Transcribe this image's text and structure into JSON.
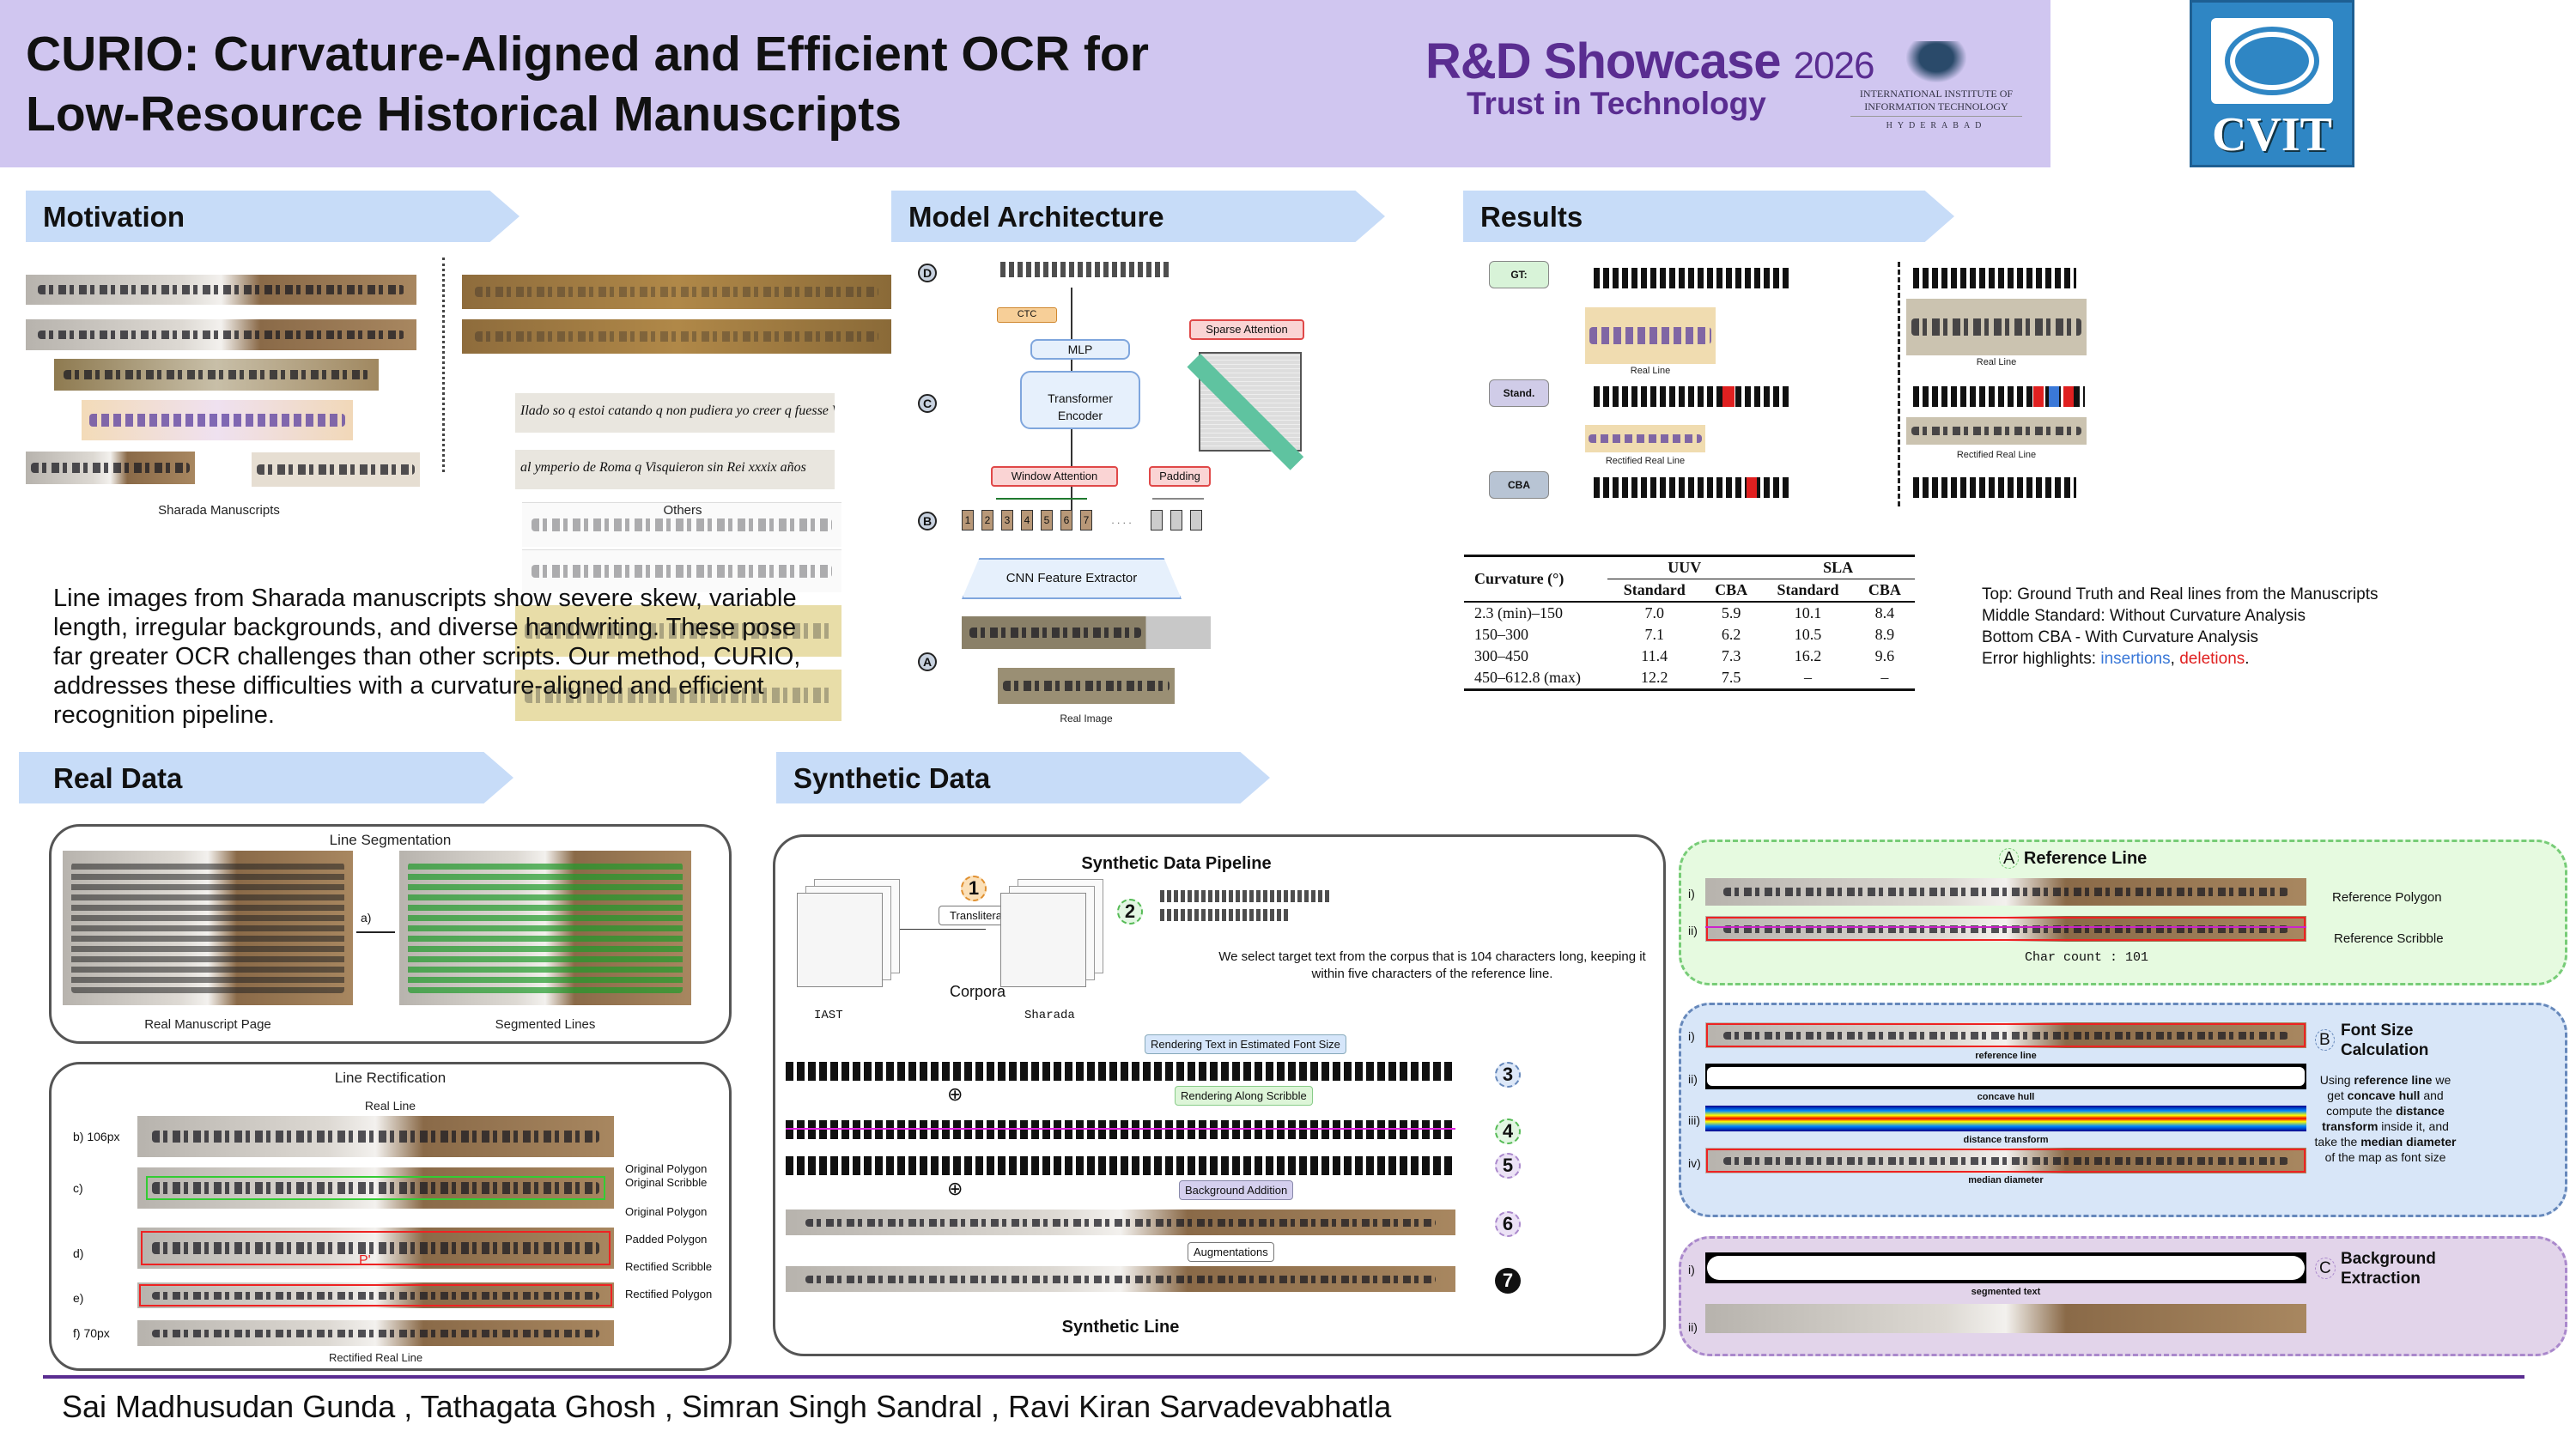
{
  "header": {
    "title_line1": "CURIO: Curvature-Aligned and Efficient OCR for",
    "title_line2": "Low-Resource Historical Manuscripts",
    "showcase": "R&D Showcase",
    "showcase_year": "2026",
    "tagline": "Trust in Technology",
    "institute_line1": "INTERNATIONAL INSTITUTE OF",
    "institute_line2": "INFORMATION TECHNOLOGY",
    "institute_city": "HYDERABAD",
    "lab_logo": "CVIT"
  },
  "sections": {
    "motivation": "Motivation",
    "architecture": "Model Architecture",
    "results": "Results",
    "real_data": "Real Data",
    "synthetic_data": "Synthetic Data"
  },
  "motivation": {
    "caption_sharada": "Sharada Manuscripts",
    "caption_others": "Others",
    "others_text": [
      "Ilado so q estoi catando q non pudiera yo creer q fuesse Vdad",
      "al ymperio de Roma q Visquieron sin Rei xxxix años"
    ],
    "paragraph": "Line images from Sharada manuscripts show severe skew, variable length, irregular backgrounds, and diverse handwriting. These pose far greater OCR challenges than other scripts. Our method, CURIO, addresses these difficulties with a curvature-aligned and efficient recognition pipeline."
  },
  "architecture": {
    "stages": [
      "D",
      "C",
      "B",
      "A"
    ],
    "ctc": "CTC",
    "mlp": "MLP",
    "encoder": "Transformer Encoder",
    "sparse": "Sparse Attention",
    "window": "Window Attention",
    "padding": "Padding",
    "tokens": [
      "1",
      "2",
      "3",
      "4",
      "5",
      "6",
      "7"
    ],
    "ellipsis": ". . . .",
    "cnn": "CNN Feature Extractor",
    "real_image": "Real Image"
  },
  "results": {
    "badges": [
      "GT:",
      "Stand.",
      "CBA"
    ],
    "caption_real": "Real Line",
    "caption_rectified": "Rectified Real Line",
    "table": {
      "header_curv": "Curvature (°)",
      "groups": [
        "UUV",
        "SLA"
      ],
      "sub": [
        "Standard",
        "CBA",
        "Standard",
        "CBA"
      ],
      "rows": [
        [
          "2.3 (min)–150",
          "7.0",
          "5.9",
          "10.1",
          "8.4"
        ],
        [
          "150–300",
          "7.1",
          "6.2",
          "10.5",
          "8.9"
        ],
        [
          "300–450",
          "11.4",
          "7.3",
          "16.2",
          "9.6"
        ],
        [
          "450–612.8 (max)",
          "12.2",
          "7.5",
          "–",
          "–"
        ]
      ]
    },
    "legend": {
      "top": "Top: Ground Truth and Real lines from the Manuscripts",
      "middle": "Middle Standard: Without Curvature Analysis",
      "bottom": "Bottom CBA -  With Curvature Analysis",
      "errors_prefix": "Error highlights: ",
      "insertions": "insertions",
      "comma": ", ",
      "deletions": "deletions",
      "period": "."
    },
    "colors": {
      "insertion": "#3a78d8",
      "deletion": "#e02020"
    }
  },
  "real_data": {
    "seg_title": "Line Segmentation",
    "step_a": "a)",
    "real_page": "Real Manuscript Page",
    "segmented": "Segmented Lines",
    "rect_title": "Line Rectification",
    "real_line": "Real Line",
    "rows": [
      "b)",
      "c)",
      "d)",
      "e)",
      "f)"
    ],
    "h_b": "106px",
    "h_f": "70px",
    "labels": [
      "Original Polygon",
      "Original Scribble",
      "Original Polygon",
      "Padded Polygon",
      "Rectified Scribble",
      "Rectified Polygon"
    ],
    "p_marker": "P'",
    "rectified_real": "Rectified Real Line"
  },
  "synthetic": {
    "title": "Synthetic Data Pipeline",
    "transliteration": "Transliteration",
    "corpora": "Corpora",
    "iast": "IAST",
    "sharada": "Sharada",
    "steps": [
      "1",
      "2",
      "3",
      "4",
      "5",
      "6",
      "7"
    ],
    "description": "We select target text from the corpus that is 104 characters long, keeping it within five characters of the reference line.",
    "render_font": "Rendering Text in Estimated Font Size",
    "render_scribble": "Rendering Along Scribble",
    "background": "Background Addition",
    "augment": "Augmentations",
    "synthetic_line": "Synthetic Line",
    "ref": {
      "letter": "A",
      "title": "Reference Line",
      "i": "i)",
      "ii": "ii)",
      "polygon": "Reference  Polygon",
      "scribble": "Reference Scribble",
      "char_count": "Char count : 101"
    },
    "font": {
      "letter": "B",
      "title": "Font Size Calculation",
      "rows": [
        "i)",
        "ii)",
        "iii)",
        "iv)"
      ],
      "caps": [
        "reference line",
        "concave hull",
        "distance transform",
        "median diameter"
      ],
      "desc": [
        "Using ",
        "reference line",
        " we get ",
        "concave hull",
        " and compute the ",
        "distance transform",
        " inside it, and take the ",
        "median diameter",
        " of the map as font size"
      ]
    },
    "bg": {
      "letter": "C",
      "title": "Background Extraction",
      "rows": [
        "i)",
        "ii)"
      ],
      "cap": "segmented text"
    }
  },
  "authors": "Sai Madhusudan Gunda , Tathagata Ghosh , Simran Singh Sandral , Ravi Kiran Sarvadevabhatla"
}
